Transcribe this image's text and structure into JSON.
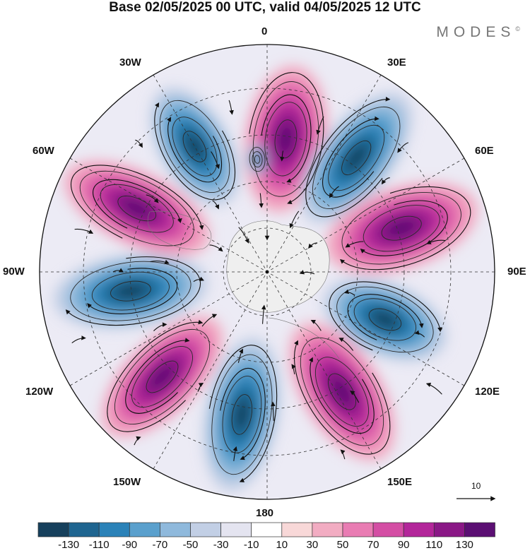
{
  "title": "Base 02/05/2025 00 UTC, valid 04/05/2025 12 UTC",
  "logo": "MODES",
  "logo_mark": "©",
  "meridian_labels": {
    "lon_0": "0",
    "lon_30e": "30E",
    "lon_60e": "60E",
    "lon_90e": "90E",
    "lon_120e": "120E",
    "lon_150e": "150E",
    "lon_180": "180",
    "lon_150w": "150W",
    "lon_120w": "120W",
    "lon_90w": "90W",
    "lon_60w": "60W",
    "lon_30w": "30W"
  },
  "reference_vector": {
    "label": "10"
  },
  "colorbar": {
    "ticks": [
      "-130",
      "-110",
      "-90",
      "-70",
      "-50",
      "-30",
      "-10",
      "10",
      "30",
      "50",
      "70",
      "90",
      "110",
      "130"
    ],
    "colors": [
      "#16405c",
      "#1f6590",
      "#2b82b8",
      "#5aa0cd",
      "#8fb9dc",
      "#c2cfe5",
      "#e4e4f0",
      "#ffffff",
      "#f8d8d8",
      "#f2acc2",
      "#e97cb3",
      "#d44ea4",
      "#b3269a",
      "#8a1886",
      "#5b0f73"
    ]
  },
  "map_colors": {
    "land": "#f0f0f0",
    "background_tint": "#ecebf5"
  }
}
